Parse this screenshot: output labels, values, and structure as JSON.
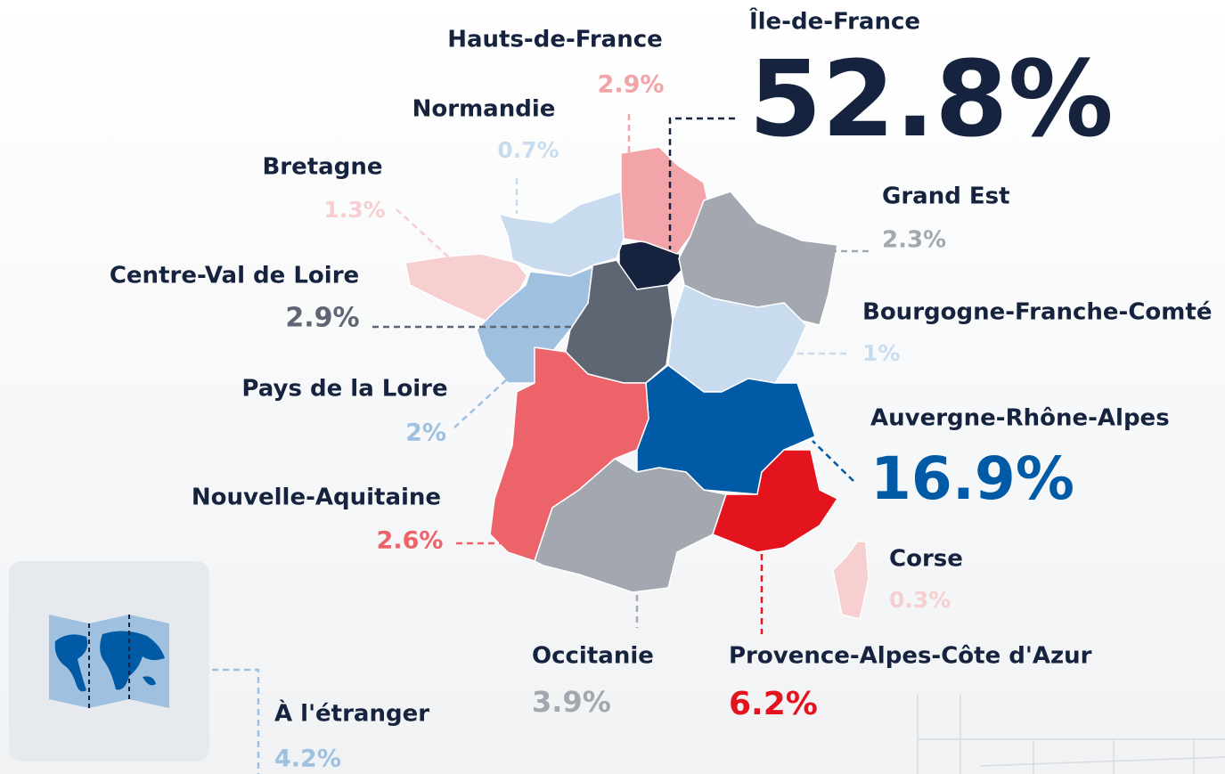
{
  "regions": [
    {
      "name": "Île-de-France",
      "value": "52.8%",
      "color": "#16233f"
    },
    {
      "name": "Hauts-de-France",
      "value": "2.9%",
      "color": "#f2a4a8"
    },
    {
      "name": "Normandie",
      "value": "0.7%",
      "color": "#c9dbee"
    },
    {
      "name": "Bretagne",
      "value": "1.3%",
      "color": "#f7cfd1"
    },
    {
      "name": "Grand Est",
      "value": "2.3%",
      "color": "#a3a7af"
    },
    {
      "name": "Centre-Val de Loire",
      "value": "2.9%",
      "color": "#5f6673"
    },
    {
      "name": "Bourgogne-Franche-Comté",
      "value": "1%",
      "color": "#c9dbee"
    },
    {
      "name": "Pays de la Loire",
      "value": "2%",
      "color": "#9fc1df"
    },
    {
      "name": "Auvergne-Rhône-Alpes",
      "value": "16.9%",
      "color": "#005aa6"
    },
    {
      "name": "Nouvelle-Aquitaine",
      "value": "2.6%",
      "color": "#ec6469"
    },
    {
      "name": "Corse",
      "value": "0.3%",
      "color": "#f7cfd1"
    },
    {
      "name": "Occitanie",
      "value": "3.9%",
      "color": "#a3a7af"
    },
    {
      "name": "Provence-Alpes-Côte d'Azur",
      "value": "6.2%",
      "color": "#e3141e"
    }
  ],
  "abroad": {
    "name": "À l'étranger",
    "value": "4.2%",
    "color": "#9fc1df"
  }
}
